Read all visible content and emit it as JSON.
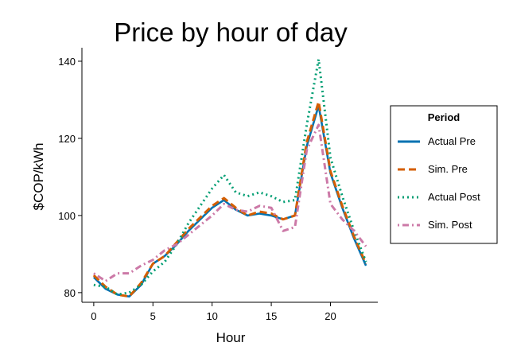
{
  "chart_data": {
    "type": "line",
    "title": "Price by hour of day",
    "xlabel": "Hour",
    "ylabel": "$COP/kWh",
    "xlim": [
      -1,
      24
    ],
    "ylim": [
      77.5,
      143.5
    ],
    "xticks": [
      0,
      5,
      10,
      15,
      20
    ],
    "yticks": [
      80,
      100,
      120,
      140
    ],
    "grid": false,
    "legend": {
      "title": "Period",
      "placement": "right"
    },
    "x": [
      0,
      1,
      2,
      3,
      4,
      5,
      6,
      7,
      8,
      9,
      10,
      11,
      12,
      13,
      14,
      15,
      16,
      17,
      18,
      19,
      20,
      21,
      22,
      23
    ],
    "series": [
      {
        "name": "Actual Pre",
        "color": "#0072B2",
        "dash": "solid",
        "values": [
          84.0,
          81.0,
          79.5,
          79.0,
          82.0,
          87.5,
          89.5,
          92.5,
          96.0,
          99.0,
          102.0,
          104.0,
          101.5,
          100.0,
          100.5,
          100.0,
          99.0,
          100.0,
          118.0,
          128.5,
          111.0,
          102.0,
          94.0,
          87.0
        ]
      },
      {
        "name": "Sim. Pre",
        "color": "#D55E00",
        "dash": "dashed",
        "values": [
          84.5,
          81.5,
          79.5,
          79.0,
          82.5,
          87.5,
          89.5,
          93.0,
          96.5,
          99.5,
          102.5,
          104.5,
          102.0,
          100.0,
          101.0,
          100.5,
          99.0,
          100.0,
          119.0,
          129.5,
          111.5,
          102.5,
          94.5,
          87.5
        ]
      },
      {
        "name": "Actual Post",
        "color": "#009E73",
        "dash": "dotted",
        "values": [
          82.0,
          81.5,
          79.5,
          80.0,
          82.0,
          85.5,
          88.0,
          92.5,
          98.0,
          102.5,
          107.0,
          110.5,
          106.0,
          105.0,
          106.0,
          105.0,
          103.5,
          104.0,
          123.5,
          140.5,
          115.0,
          105.0,
          96.0,
          88.0
        ]
      },
      {
        "name": "Sim. Post",
        "color": "#CC79A7",
        "dash": "dotdash",
        "values": [
          85.0,
          83.0,
          85.0,
          85.0,
          87.0,
          88.5,
          91.0,
          92.5,
          95.0,
          97.5,
          100.0,
          103.0,
          101.5,
          101.0,
          102.5,
          102.0,
          96.0,
          97.0,
          117.0,
          123.5,
          103.0,
          99.0,
          96.0,
          92.0
        ]
      }
    ]
  }
}
